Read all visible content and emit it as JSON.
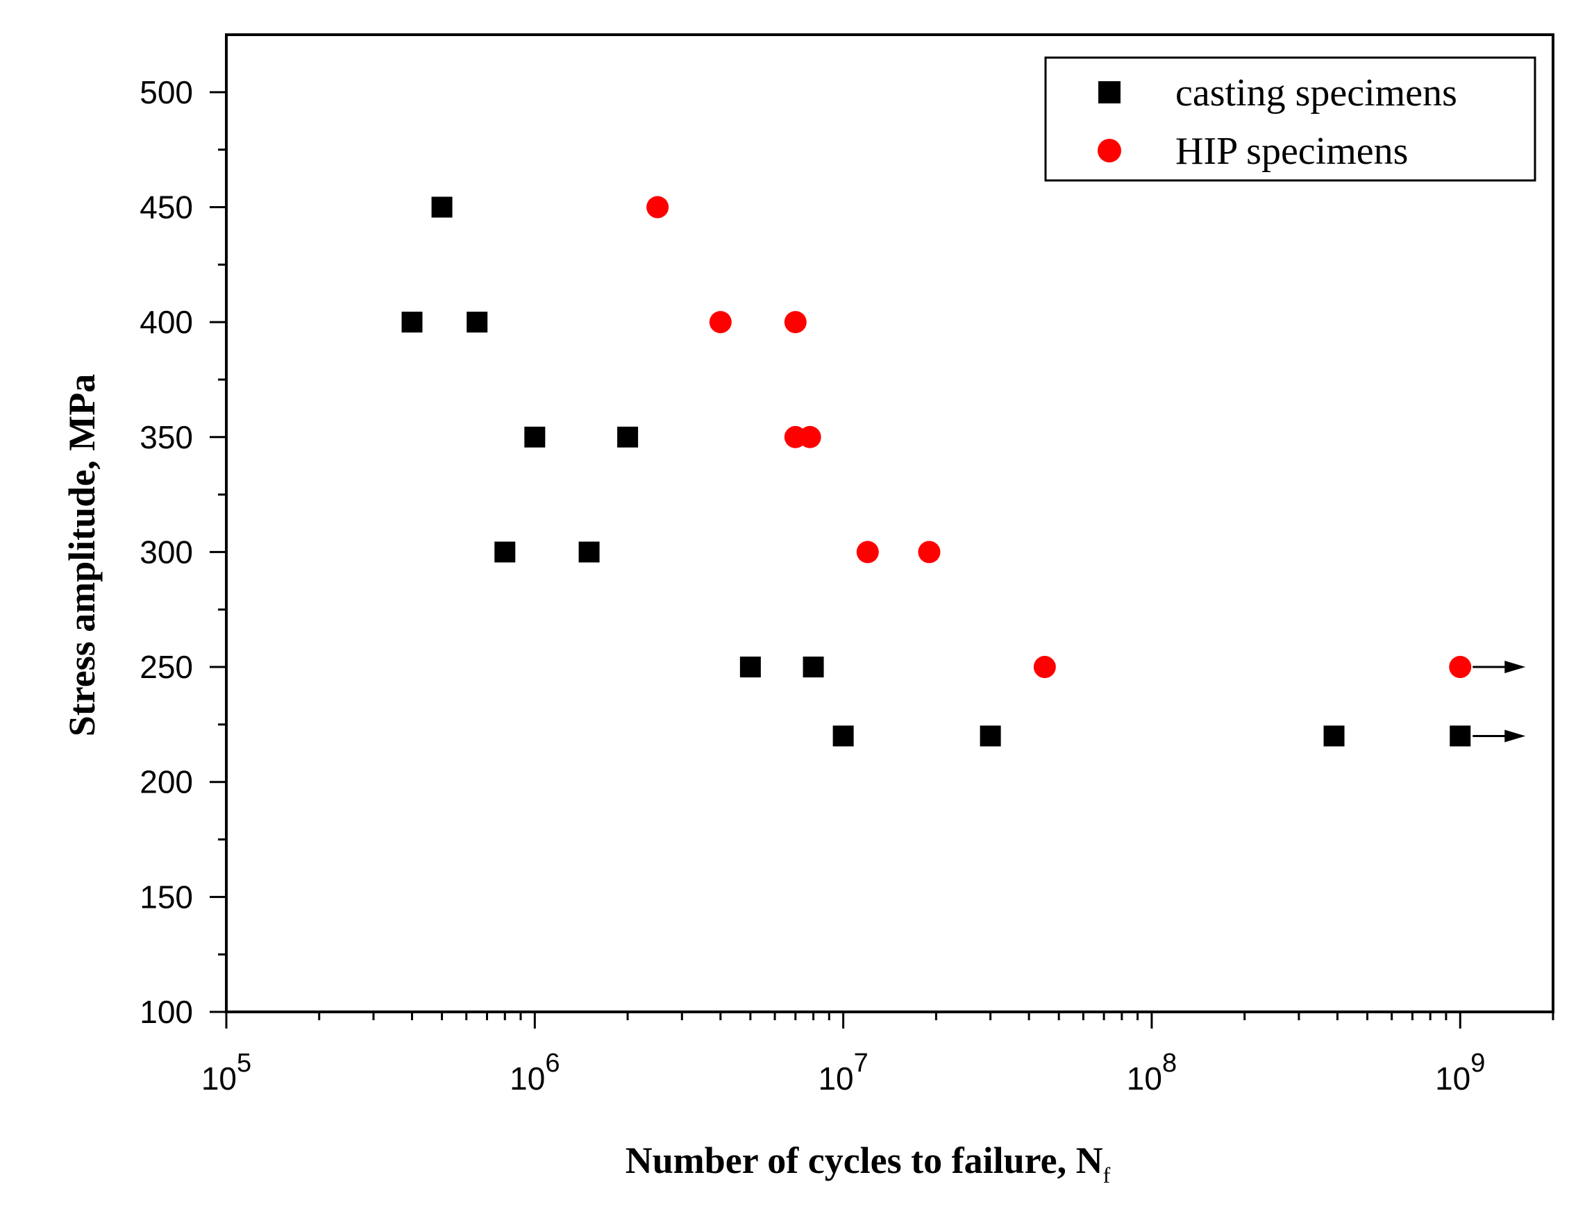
{
  "chart_data": {
    "type": "scatter",
    "title": "",
    "xlabel": "Number of cycles to failure, N",
    "xlabel_subscript": "f",
    "ylabel": "Stress amplitude, MPa",
    "x_scale": "log",
    "xlim": [
      100000,
      2000000000
    ],
    "ylim": [
      100,
      525
    ],
    "x_ticks": [
      {
        "value": 100000,
        "base": "10",
        "exp": "5"
      },
      {
        "value": 1000000,
        "base": "10",
        "exp": "6"
      },
      {
        "value": 10000000,
        "base": "10",
        "exp": "7"
      },
      {
        "value": 100000000,
        "base": "10",
        "exp": "8"
      },
      {
        "value": 1000000000,
        "base": "10",
        "exp": "9"
      }
    ],
    "y_ticks": [
      100,
      150,
      200,
      250,
      300,
      350,
      400,
      450,
      500
    ],
    "grid": false,
    "legend_position": "top-right",
    "series": [
      {
        "name": "casting specimens",
        "marker": "square",
        "color": "#000000",
        "points": [
          {
            "x": 500000,
            "y": 450
          },
          {
            "x": 400000,
            "y": 400
          },
          {
            "x": 650000,
            "y": 400
          },
          {
            "x": 1000000,
            "y": 350
          },
          {
            "x": 2000000,
            "y": 350
          },
          {
            "x": 800000,
            "y": 300
          },
          {
            "x": 1500000,
            "y": 300
          },
          {
            "x": 5000000,
            "y": 250
          },
          {
            "x": 8000000,
            "y": 250
          },
          {
            "x": 10000000,
            "y": 220
          },
          {
            "x": 30000000,
            "y": 220
          },
          {
            "x": 390000000,
            "y": 220
          },
          {
            "x": 1000000000,
            "y": 220,
            "runout": true
          }
        ]
      },
      {
        "name": "HIP specimens",
        "marker": "circle",
        "color": "#ff0000",
        "points": [
          {
            "x": 2500000,
            "y": 450
          },
          {
            "x": 4000000,
            "y": 400
          },
          {
            "x": 7000000,
            "y": 400
          },
          {
            "x": 7000000,
            "y": 350
          },
          {
            "x": 7800000,
            "y": 350
          },
          {
            "x": 12000000,
            "y": 300
          },
          {
            "x": 19000000,
            "y": 300
          },
          {
            "x": 45000000,
            "y": 250
          },
          {
            "x": 1000000000,
            "y": 250,
            "runout": true
          }
        ]
      }
    ]
  }
}
